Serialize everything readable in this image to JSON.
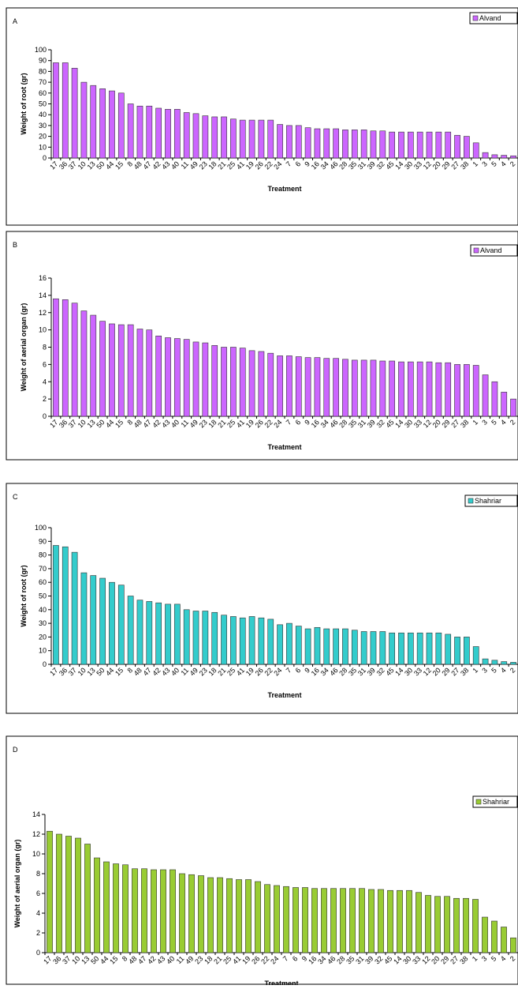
{
  "chart_data": [
    {
      "type": "bar",
      "panel_label": "A",
      "y_label": "Weight of root (gr)",
      "x_label": "Treatment",
      "categories": [
        "17",
        "36",
        "37",
        "10",
        "13",
        "50",
        "44",
        "15",
        "8",
        "48",
        "47",
        "42",
        "43",
        "40",
        "11",
        "49",
        "23",
        "18",
        "21",
        "25",
        "41",
        "19",
        "26",
        "22",
        "24",
        "7",
        "6",
        "9",
        "16",
        "34",
        "46",
        "28",
        "35",
        "31",
        "39",
        "32",
        "45",
        "14",
        "30",
        "33",
        "12",
        "20",
        "29",
        "27",
        "38",
        "1",
        "3",
        "5",
        "4",
        "2"
      ],
      "series": [
        {
          "name": "Alvand",
          "color": "#cc66ff",
          "values": [
            88,
            88,
            83,
            70,
            67,
            64,
            62,
            60,
            50,
            48,
            48,
            46,
            45,
            45,
            42,
            41,
            39,
            38,
            38,
            36,
            35,
            35,
            35,
            35,
            31,
            30,
            30,
            28,
            27,
            27,
            27,
            26,
            26,
            26,
            25,
            25,
            24,
            24,
            24,
            24,
            24,
            24,
            24,
            21,
            20,
            14,
            5,
            3,
            2.5,
            2
          ]
        }
      ],
      "ylim": [
        0,
        100
      ],
      "yticks": [
        0,
        10,
        20,
        30,
        40,
        50,
        60,
        70,
        80,
        90,
        100
      ]
    },
    {
      "type": "bar",
      "panel_label": "B",
      "y_label": "Weight of aerial organ (gr)",
      "x_label": "Treatment",
      "categories": [
        "17",
        "36",
        "37",
        "10",
        "13",
        "50",
        "44",
        "15",
        "8",
        "48",
        "47",
        "42",
        "43",
        "40",
        "11",
        "49",
        "23",
        "18",
        "21",
        "25",
        "41",
        "19",
        "26",
        "22",
        "24",
        "7",
        "6",
        "9",
        "16",
        "34",
        "46",
        "28",
        "35",
        "31",
        "39",
        "32",
        "45",
        "14",
        "30",
        "33",
        "12",
        "20",
        "29",
        "27",
        "38",
        "1",
        "3",
        "5",
        "4",
        "2"
      ],
      "series": [
        {
          "name": "Alvand",
          "color": "#cc66ff",
          "values": [
            13.6,
            13.5,
            13.1,
            12.2,
            11.7,
            11.0,
            10.7,
            10.6,
            10.6,
            10.1,
            10.0,
            9.3,
            9.1,
            9.0,
            8.9,
            8.6,
            8.5,
            8.2,
            8.0,
            8.0,
            7.9,
            7.6,
            7.5,
            7.3,
            7.0,
            7.0,
            6.9,
            6.8,
            6.8,
            6.7,
            6.7,
            6.6,
            6.5,
            6.5,
            6.5,
            6.4,
            6.4,
            6.3,
            6.3,
            6.3,
            6.3,
            6.2,
            6.2,
            6.0,
            6.0,
            5.9,
            4.8,
            4.0,
            2.8,
            2.0
          ]
        }
      ],
      "ylim": [
        0,
        16
      ],
      "yticks": [
        0,
        2,
        4,
        6,
        8,
        10,
        12,
        14,
        16
      ]
    },
    {
      "type": "bar",
      "panel_label": "C",
      "y_label": "Weight of root (gr)",
      "x_label": "Treatment",
      "categories": [
        "17",
        "36",
        "37",
        "10",
        "13",
        "50",
        "44",
        "15",
        "8",
        "48",
        "47",
        "42",
        "43",
        "40",
        "11",
        "49",
        "23",
        "18",
        "21",
        "25",
        "41",
        "19",
        "26",
        "22",
        "24",
        "7",
        "6",
        "9",
        "16",
        "34",
        "46",
        "28",
        "35",
        "31",
        "39",
        "32",
        "45",
        "14",
        "30",
        "33",
        "12",
        "20",
        "29",
        "27",
        "38",
        "1",
        "3",
        "5",
        "4",
        "2"
      ],
      "series": [
        {
          "name": "Shahriar",
          "color": "#33cccc",
          "values": [
            87,
            86,
            82,
            67,
            65,
            63,
            60,
            58,
            50,
            47,
            46,
            45,
            44,
            44,
            40,
            39,
            39,
            38,
            36,
            35,
            34,
            35,
            34,
            33,
            29,
            30,
            28,
            26,
            27,
            26,
            26,
            26,
            25,
            24,
            24,
            24,
            23,
            23,
            23,
            23,
            23,
            23,
            22,
            20,
            20,
            13,
            4,
            3,
            2,
            1.5
          ]
        }
      ],
      "ylim": [
        0,
        100
      ],
      "yticks": [
        0,
        10,
        20,
        30,
        40,
        50,
        60,
        70,
        80,
        90,
        100
      ]
    },
    {
      "type": "bar",
      "panel_label": "D",
      "y_label": "Weight of aerial organ (gr)",
      "x_label": "Treatment",
      "categories": [
        "17",
        "36",
        "37",
        "10",
        "13",
        "50",
        "44",
        "15",
        "8",
        "48",
        "47",
        "42",
        "43",
        "40",
        "11",
        "49",
        "23",
        "18",
        "21",
        "25",
        "41",
        "19",
        "26",
        "22",
        "24",
        "7",
        "6",
        "9",
        "16",
        "34",
        "46",
        "28",
        "35",
        "31",
        "39",
        "32",
        "45",
        "14",
        "30",
        "33",
        "12",
        "20",
        "29",
        "27",
        "38",
        "1",
        "3",
        "5",
        "4",
        "2"
      ],
      "series": [
        {
          "name": "Shahriar",
          "color": "#99cc33",
          "values": [
            12.3,
            12.0,
            11.8,
            11.6,
            11.0,
            9.6,
            9.2,
            9.0,
            8.9,
            8.5,
            8.5,
            8.4,
            8.4,
            8.4,
            8.0,
            7.9,
            7.8,
            7.6,
            7.6,
            7.5,
            7.4,
            7.4,
            7.2,
            6.9,
            6.8,
            6.7,
            6.6,
            6.6,
            6.5,
            6.5,
            6.5,
            6.5,
            6.5,
            6.5,
            6.4,
            6.4,
            6.3,
            6.3,
            6.3,
            6.1,
            5.8,
            5.7,
            5.7,
            5.5,
            5.5,
            5.4,
            3.6,
            3.2,
            2.6,
            1.5
          ]
        }
      ],
      "ylim": [
        0,
        14
      ],
      "yticks": [
        0,
        2,
        4,
        6,
        8,
        10,
        12,
        14
      ]
    }
  ]
}
